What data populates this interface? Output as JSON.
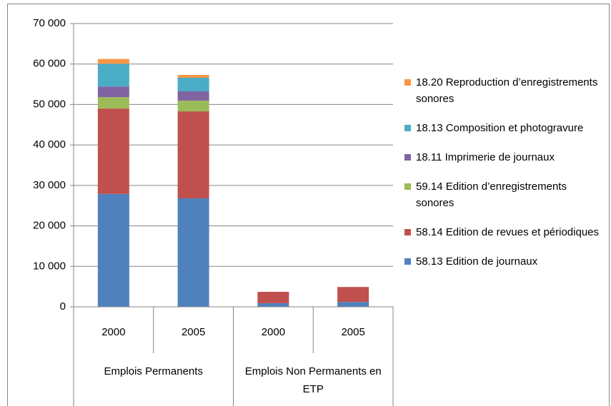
{
  "chart_data": {
    "type": "stacked_bar",
    "categories": [
      "2000",
      "2005",
      "2000",
      "2005"
    ],
    "groups": [
      "Emplois Permanents",
      "Emplois Non Permanents en ETP"
    ],
    "series": [
      {
        "name": "58.13 Edition de journaux",
        "color": "#4f81bd",
        "values": [
          27900,
          26800,
          900,
          1200
        ]
      },
      {
        "name": "58.14 Edition de revues et périodiques",
        "color": "#c0504d",
        "values": [
          21100,
          21500,
          2800,
          3700
        ]
      },
      {
        "name": "59.14 Edition d’enregistrements sonores",
        "color": "#9bbb59",
        "values": [
          2800,
          2650,
          0,
          0
        ]
      },
      {
        "name": "18.11 Imprimerie de journaux",
        "color": "#8064a2",
        "values": [
          2650,
          2300,
          0,
          0
        ]
      },
      {
        "name": "18.13 Composition et photogravure",
        "color": "#4bacc6",
        "values": [
          5600,
          3350,
          0,
          0
        ]
      },
      {
        "name": "18.20 Reproduction d’enregistrements sonores",
        "color": "#f79646",
        "values": [
          1200,
          700,
          0,
          0
        ]
      }
    ],
    "ylim": [
      0,
      70000
    ],
    "yticks": [
      0,
      {
        "value": 10000,
        "label": "10 000"
      },
      {
        "value": 20000,
        "label": "20 000"
      },
      {
        "value": 30000,
        "label": "30 000"
      },
      {
        "value": 40000,
        "label": "40 000"
      },
      {
        "value": 50000,
        "label": "50 000"
      },
      {
        "value": 60000,
        "label": "60 000"
      },
      {
        "value": 70000,
        "label": "70 000"
      }
    ],
    "grid": true,
    "legend": "right"
  }
}
